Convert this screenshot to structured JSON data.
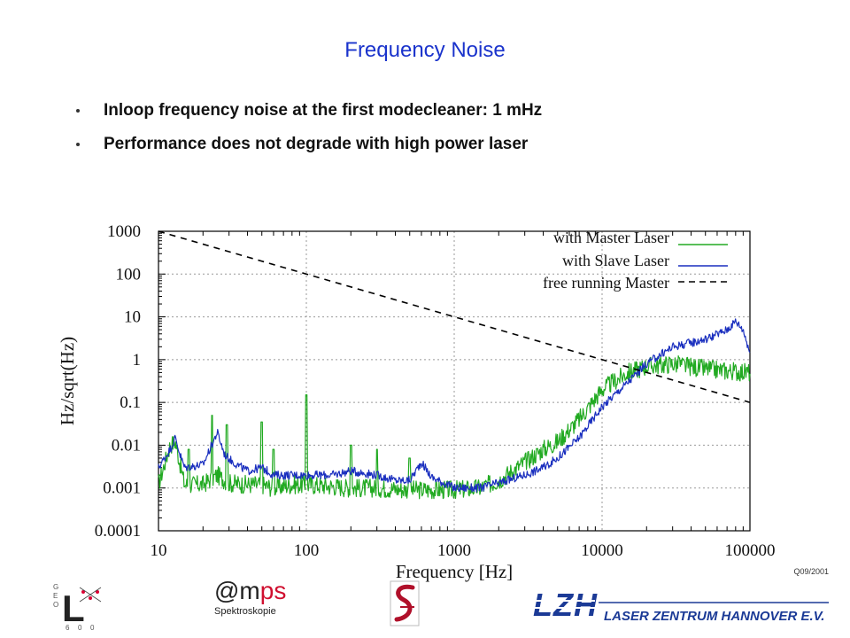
{
  "slide": {
    "title": "Frequency Noise",
    "bullets": [
      "Inloop frequency noise at the first modecleaner: 1 mHz",
      "Performance does not degrade with high power laser"
    ],
    "reference": "Q09/2001"
  },
  "logos": {
    "geo600": {
      "letters": [
        "G",
        "E",
        "O",
        "L",
        "6",
        "0",
        "0"
      ]
    },
    "amps": {
      "name_at": "@m",
      "name_ps": "ps",
      "subtitle": "Spektroskopie"
    },
    "lzh": {
      "mark": "LZH",
      "name": "LASER ZENTRUM HANNOVER E.V."
    }
  },
  "chart_data": {
    "type": "line",
    "xlabel": "Frequency [Hz]",
    "ylabel": "Hz/sqrt(Hz)",
    "xscale": "log",
    "yscale": "log",
    "xlim": [
      10,
      100000
    ],
    "ylim": [
      0.0001,
      1000
    ],
    "x_ticks": [
      "10",
      "100",
      "1000",
      "10000",
      "100000"
    ],
    "y_ticks": [
      "0.0001",
      "0.001",
      "0.01",
      "0.1",
      "1",
      "10",
      "100",
      "1000"
    ],
    "grid": true,
    "legend_position": "top-right",
    "colors": {
      "master": "#22aa22",
      "slave": "#1a2fbf",
      "free": "#000000"
    },
    "series": [
      {
        "name": "with Master Laser",
        "style": "solid",
        "points": [
          [
            10,
            0.0012
          ],
          [
            12,
            0.01
          ],
          [
            13,
            0.012
          ],
          [
            15,
            0.0012
          ],
          [
            20,
            0.0012
          ],
          [
            25,
            0.002
          ],
          [
            30,
            0.0013
          ],
          [
            40,
            0.0012
          ],
          [
            50,
            0.0012
          ],
          [
            60,
            0.001
          ],
          [
            80,
            0.0012
          ],
          [
            100,
            0.0012
          ],
          [
            150,
            0.0011
          ],
          [
            200,
            0.001
          ],
          [
            300,
            0.001
          ],
          [
            500,
            0.0009
          ],
          [
            700,
            0.0009
          ],
          [
            1000,
            0.0009
          ],
          [
            1500,
            0.001
          ],
          [
            2000,
            0.0015
          ],
          [
            3000,
            0.004
          ],
          [
            4000,
            0.008
          ],
          [
            5000,
            0.012
          ],
          [
            7000,
            0.04
          ],
          [
            10000,
            0.2
          ],
          [
            15000,
            0.5
          ],
          [
            20000,
            0.7
          ],
          [
            30000,
            0.8
          ],
          [
            50000,
            0.6
          ],
          [
            70000,
            0.55
          ],
          [
            100000,
            0.5
          ]
        ],
        "peaks": [
          [
            13,
            0.008
          ],
          [
            16,
            0.008
          ],
          [
            23,
            0.05
          ],
          [
            29,
            0.03
          ],
          [
            50,
            0.035
          ],
          [
            60,
            0.008
          ],
          [
            100,
            0.15
          ],
          [
            200,
            0.01
          ],
          [
            300,
            0.008
          ],
          [
            500,
            0.005
          ],
          [
            33000,
            1.1
          ]
        ]
      },
      {
        "name": "with Slave Laser",
        "style": "solid",
        "points": [
          [
            10,
            0.003
          ],
          [
            12,
            0.008
          ],
          [
            13,
            0.015
          ],
          [
            14,
            0.006
          ],
          [
            15,
            0.003
          ],
          [
            20,
            0.0035
          ],
          [
            25,
            0.02
          ],
          [
            28,
            0.006
          ],
          [
            32,
            0.004
          ],
          [
            40,
            0.0025
          ],
          [
            50,
            0.003
          ],
          [
            60,
            0.002
          ],
          [
            80,
            0.002
          ],
          [
            100,
            0.002
          ],
          [
            150,
            0.002
          ],
          [
            200,
            0.0025
          ],
          [
            300,
            0.002
          ],
          [
            400,
            0.0015
          ],
          [
            500,
            0.0015
          ],
          [
            600,
            0.004
          ],
          [
            700,
            0.0018
          ],
          [
            1000,
            0.001
          ],
          [
            1500,
            0.001
          ],
          [
            2000,
            0.0013
          ],
          [
            3000,
            0.002
          ],
          [
            4000,
            0.003
          ],
          [
            5000,
            0.005
          ],
          [
            7000,
            0.015
          ],
          [
            10000,
            0.08
          ],
          [
            15000,
            0.3
          ],
          [
            20000,
            0.8
          ],
          [
            30000,
            2
          ],
          [
            40000,
            2.5
          ],
          [
            50000,
            3
          ],
          [
            70000,
            5
          ],
          [
            80000,
            8
          ],
          [
            90000,
            5
          ],
          [
            100000,
            1.5
          ]
        ]
      },
      {
        "name": "free running Master",
        "style": "dashed",
        "points": [
          [
            10,
            1000
          ],
          [
            100000,
            0.1
          ]
        ]
      }
    ]
  }
}
